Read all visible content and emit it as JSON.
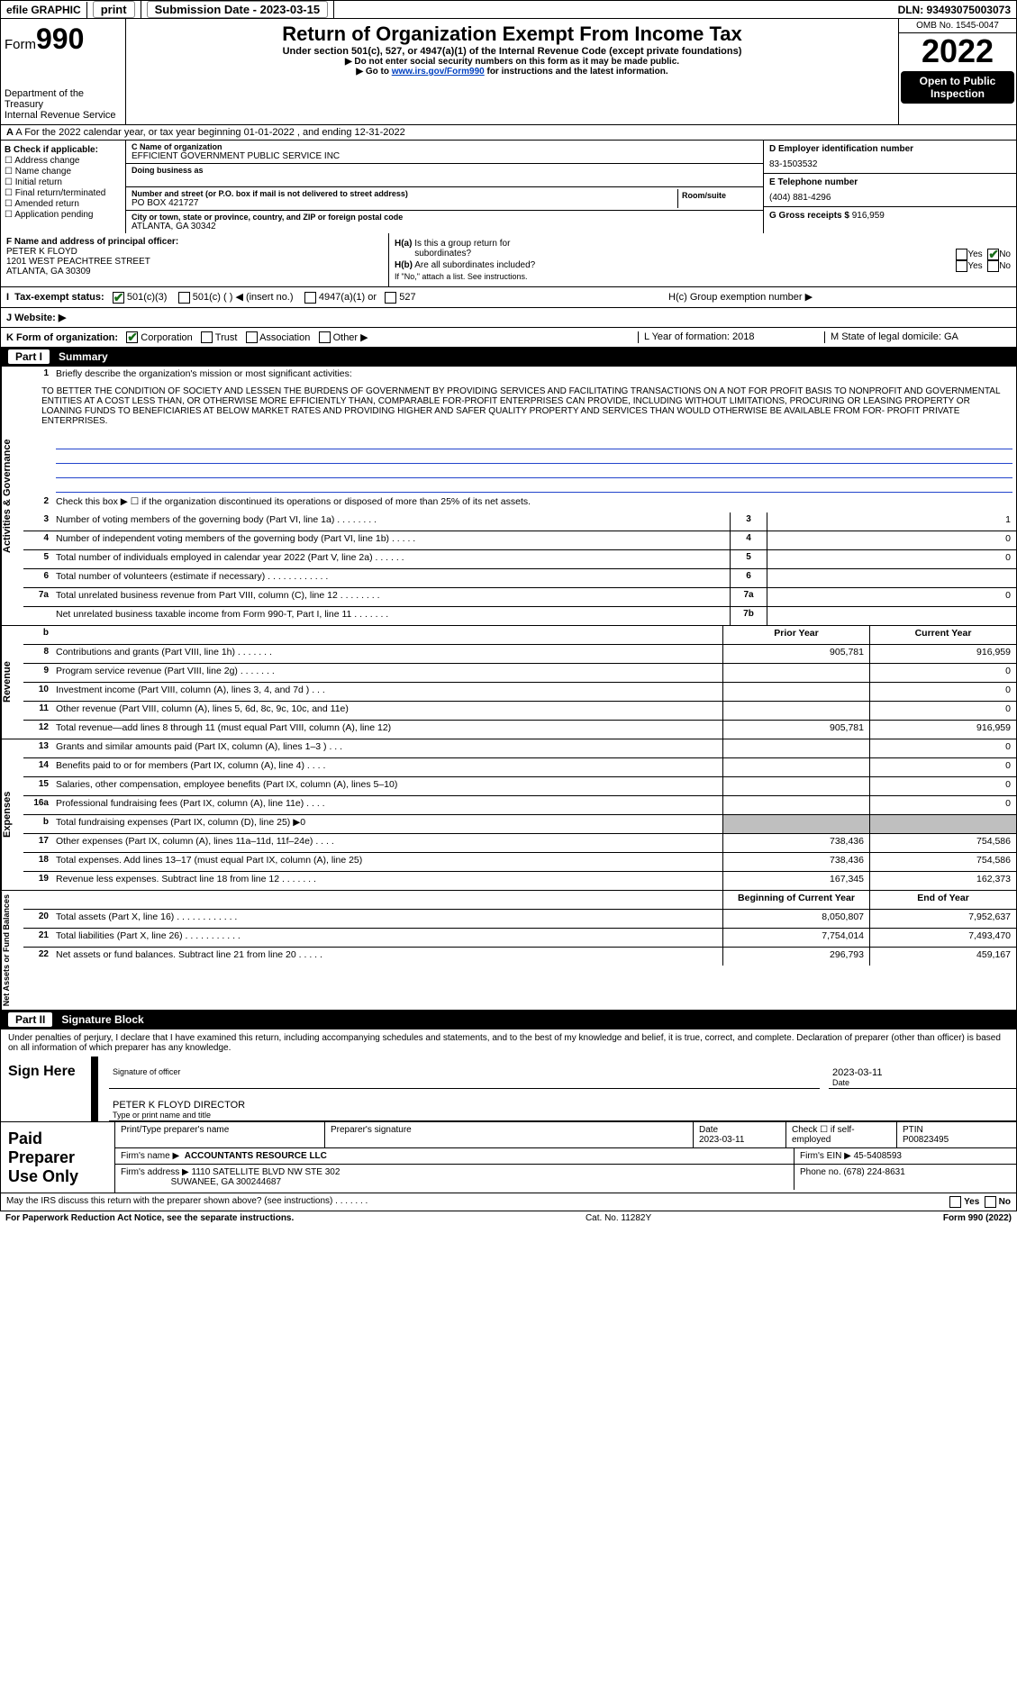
{
  "top": {
    "efile": "efile GRAPHIC",
    "print": "print",
    "sub_label": "Submission Date - 2023-03-15",
    "dln": "DLN: 93493075003073"
  },
  "header": {
    "form_label": "Form",
    "form_num": "990",
    "dept": "Department of the Treasury",
    "irs": "Internal Revenue Service",
    "title": "Return of Organization Exempt From Income Tax",
    "sub": "Under section 501(c), 527, or 4947(a)(1) of the Internal Revenue Code (except private foundations)",
    "note1": "▶ Do not enter social security numbers on this form as it may be made public.",
    "note2_pre": "▶ Go to ",
    "note2_link": "www.irs.gov/Form990",
    "note2_post": " for instructions and the latest information.",
    "omb": "OMB No. 1545-0047",
    "year": "2022",
    "open": "Open to Public Inspection"
  },
  "line_a": "A For the 2022 calendar year, or tax year beginning 01-01-2022    , and ending 12-31-2022",
  "col_b": {
    "title": "B Check if applicable:",
    "items": [
      "Address change",
      "Name change",
      "Initial return",
      "Final return/terminated",
      "Amended return",
      "Application pending"
    ]
  },
  "col_c": {
    "c_label": "C Name of organization",
    "c_name": "EFFICIENT GOVERNMENT PUBLIC SERVICE INC",
    "dba_label": "Doing business as",
    "addr_label": "Number and street (or P.O. box if mail is not delivered to street address)",
    "addr": "PO BOX 421727",
    "room_label": "Room/suite",
    "city_label": "City or town, state or province, country, and ZIP or foreign postal code",
    "city": "ATLANTA, GA  30342"
  },
  "col_d": {
    "d_label": "D Employer identification number",
    "ein": "83-1503532",
    "e_label": "E Telephone number",
    "phone": "(404) 881-4296",
    "g_label": "G Gross receipts $",
    "g_val": "916,959"
  },
  "row_f": {
    "f_label": "F Name and address of principal officer:",
    "officer": "PETER K FLOYD",
    "addr1": "1201 WEST PEACHTREE STREET",
    "addr2": "ATLANTA, GA  30309"
  },
  "row_h": {
    "ha": "H(a)  Is this a group return for subordinates?",
    "hb": "H(b)  Are all subordinates included?",
    "hb_note": "If \"No,\" attach a list. See instructions.",
    "hc": "H(c)  Group exemption number ▶"
  },
  "row_i": {
    "label": "I  Tax-exempt status:",
    "opt1": "501(c)(3)",
    "opt2": "501(c) (   ) ◀ (insert no.)",
    "opt3": "4947(a)(1) or",
    "opt4": "527"
  },
  "row_j": {
    "label": "J  Website: ▶"
  },
  "row_k": {
    "label": "K Form of organization:",
    "corp": "Corporation",
    "trust": "Trust",
    "assoc": "Association",
    "other": "Other ▶",
    "l": "L Year of formation: 2018",
    "m": "M State of legal domicile: GA"
  },
  "part1": {
    "hdr": "Summary",
    "line1": "Briefly describe the organization's mission or most significant activities:",
    "mission": "TO BETTER THE CONDITION OF SOCIETY AND LESSEN THE BURDENS OF GOVERNMENT BY PROVIDING SERVICES AND FACILITATING TRANSACTIONS ON A NOT FOR PROFIT BASIS TO NONPROFIT AND GOVERNMENTAL ENTITIES AT A COST LESS THAN, OR OTHERWISE MORE EFFICIENTLY THAN, COMPARABLE FOR-PROFIT ENTERPRISES CAN PROVIDE, INCLUDING WITHOUT LIMITATIONS, PROCURING OR LEASING PROPERTY OR LOANING FUNDS TO BENEFICIARIES AT BELOW MARKET RATES AND PROVIDING HIGHER AND SAFER QUALITY PROPERTY AND SERVICES THAN WOULD OTHERWISE BE AVAILABLE FROM FOR- PROFIT PRIVATE ENTERPRISES.",
    "line2": "Check this box ▶ ☐ if the organization discontinued its operations or disposed of more than 25% of its net assets.",
    "rows_gov": [
      {
        "n": "3",
        "d": "Number of voting members of the governing body (Part VI, line 1a)  .    .    .    .    .    .    .    .",
        "c": "3",
        "v": "1"
      },
      {
        "n": "4",
        "d": "Number of independent voting members of the governing body (Part VI, line 1b)   .    .    .    .    .",
        "c": "4",
        "v": "0"
      },
      {
        "n": "5",
        "d": "Total number of individuals employed in calendar year 2022 (Part V, line 2a)   .    .    .    .    .    .",
        "c": "5",
        "v": "0"
      },
      {
        "n": "6",
        "d": "Total number of volunteers (estimate if necessary)   .    .    .    .    .    .    .    .    .    .    .    .",
        "c": "6",
        "v": ""
      },
      {
        "n": "7a",
        "d": "Total unrelated business revenue from Part VIII, column (C), line 12   .    .    .    .    .    .    .    .",
        "c": "7a",
        "v": "0"
      },
      {
        "n": "",
        "d": "Net unrelated business taxable income from Form 990-T, Part I, line 11   .    .    .    .    .    .    .",
        "c": "7b",
        "v": ""
      }
    ],
    "col_hdrs": {
      "b": "b",
      "prior": "Prior Year",
      "current": "Current Year"
    },
    "rows_rev": [
      {
        "n": "8",
        "d": "Contributions and grants (Part VIII, line 1h)   .    .    .    .    .    .    .",
        "p": "905,781",
        "c": "916,959"
      },
      {
        "n": "9",
        "d": "Program service revenue (Part VIII, line 2g)   .    .    .    .    .    .    .",
        "p": "",
        "c": "0"
      },
      {
        "n": "10",
        "d": "Investment income (Part VIII, column (A), lines 3, 4, and 7d )   .    .    .",
        "p": "",
        "c": "0"
      },
      {
        "n": "11",
        "d": "Other revenue (Part VIII, column (A), lines 5, 6d, 8c, 9c, 10c, and 11e)",
        "p": "",
        "c": "0"
      },
      {
        "n": "12",
        "d": "Total revenue—add lines 8 through 11 (must equal Part VIII, column (A), line 12)",
        "p": "905,781",
        "c": "916,959"
      }
    ],
    "rows_exp": [
      {
        "n": "13",
        "d": "Grants and similar amounts paid (Part IX, column (A), lines 1–3 )   .    .    .",
        "p": "",
        "c": "0"
      },
      {
        "n": "14",
        "d": "Benefits paid to or for members (Part IX, column (A), line 4)   .    .    .    .",
        "p": "",
        "c": "0"
      },
      {
        "n": "15",
        "d": "Salaries, other compensation, employee benefits (Part IX, column (A), lines 5–10)",
        "p": "",
        "c": "0"
      },
      {
        "n": "16a",
        "d": "Professional fundraising fees (Part IX, column (A), line 11e)   .    .    .    .",
        "p": "",
        "c": "0"
      },
      {
        "n": "b",
        "d": "Total fundraising expenses (Part IX, column (D), line 25) ▶0",
        "p": "shaded",
        "c": "shaded"
      },
      {
        "n": "17",
        "d": "Other expenses (Part IX, column (A), lines 11a–11d, 11f–24e)   .    .    .    .",
        "p": "738,436",
        "c": "754,586"
      },
      {
        "n": "18",
        "d": "Total expenses. Add lines 13–17 (must equal Part IX, column (A), line 25)",
        "p": "738,436",
        "c": "754,586"
      },
      {
        "n": "19",
        "d": "Revenue less expenses. Subtract line 18 from line 12   .    .    .    .    .    .    .",
        "p": "167,345",
        "c": "162,373"
      }
    ],
    "net_hdrs": {
      "begin": "Beginning of Current Year",
      "end": "End of Year"
    },
    "rows_net": [
      {
        "n": "20",
        "d": "Total assets (Part X, line 16)   .    .    .    .    .    .    .    .    .    .    .    .",
        "p": "8,050,807",
        "c": "7,952,637"
      },
      {
        "n": "21",
        "d": "Total liabilities (Part X, line 26)   .    .    .    .    .    .    .    .    .    .    .",
        "p": "7,754,014",
        "c": "7,493,470"
      },
      {
        "n": "22",
        "d": "Net assets or fund balances. Subtract line 21 from line 20   .    .    .    .    .",
        "p": "296,793",
        "c": "459,167"
      }
    ]
  },
  "part2": {
    "hdr": "Signature Block",
    "text": "Under penalties of perjury, I declare that I have examined this return, including accompanying schedules and statements, and to the best of my knowledge and belief, it is true, correct, and complete. Declaration of preparer (other than officer) is based on all information of which preparer has any knowledge.",
    "sign_here": "Sign Here",
    "sig_officer": "Signature of officer",
    "date": "2023-03-11",
    "date_lbl": "Date",
    "name": "PETER K FLOYD  DIRECTOR",
    "name_lbl": "Type or print name and title"
  },
  "prep": {
    "lab": "Paid Preparer Use Only",
    "r1": {
      "a": "Print/Type preparer's name",
      "b": "Preparer's signature",
      "c": "Date",
      "cd": "2023-03-11",
      "d": "Check ☐ if self-employed",
      "e": "PTIN",
      "ev": "P00823495"
    },
    "r2": {
      "a": "Firm's name    ▶",
      "av": "ACCOUNTANTS RESOURCE LLC",
      "b": "Firm's EIN ▶",
      "bv": "45-5408593"
    },
    "r3": {
      "a": "Firm's address ▶",
      "av1": "1110 SATELLITE BLVD NW STE 302",
      "av2": "SUWANEE, GA  300244687",
      "b": "Phone no.",
      "bv": "(678) 224-8631"
    }
  },
  "footer": {
    "q": "May the IRS discuss this return with the preparer shown above? (see instructions)   .    .    .    .    .    .    .",
    "yes": "Yes",
    "no": "No",
    "pra": "For Paperwork Reduction Act Notice, see the separate instructions.",
    "cat": "Cat. No. 11282Y",
    "form": "Form 990 (2022)"
  },
  "colors": {
    "link": "#0040c0",
    "rule": "#2244cc",
    "check": "#1a6e1a",
    "shade": "#bfbfbf"
  }
}
